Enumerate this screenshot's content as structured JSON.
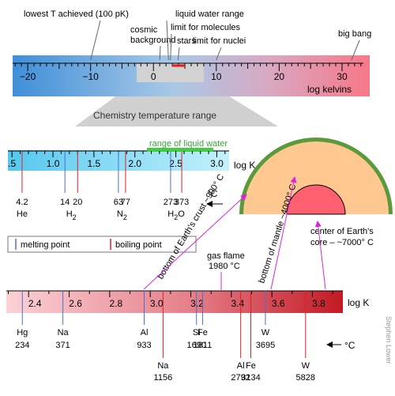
{
  "colors": {
    "melting": "#4a6fd4",
    "boiling": "#e02020",
    "liquid_water": "#44cc44",
    "magenta": "#e020e0",
    "earth_crust": "#5a9a3a",
    "mantle": "#ffc890",
    "core": "#ff6070",
    "trapezoid": "#d0d0d0"
  },
  "top_scale": {
    "ticks": [
      "−20",
      "−10",
      "0",
      "10",
      "20",
      "30"
    ],
    "tick_values": [
      -20,
      -10,
      0,
      10,
      20,
      30
    ],
    "min": -22.4,
    "max": 33.4,
    "unit": "log kelvins",
    "callouts": [
      {
        "label": "lowest T achieved (100 pK)",
        "value": -10
      },
      {
        "label": "cosmic\nbackground",
        "value": 1
      },
      {
        "label": "liquid water range",
        "value": 2.4
      },
      {
        "label": "limit for molecules",
        "value": 2.7
      },
      {
        "label": "stars",
        "value": 3.9
      },
      {
        "label": "limit for nuclei",
        "value": 10
      },
      {
        "label": "big bang",
        "value": 31.5
      }
    ]
  },
  "zoom_label": "Chemistry temperature range",
  "low_scale": {
    "ticks": [
      ".5",
      "1.0",
      "1.5",
      "2.0",
      "2.5",
      "3.0"
    ],
    "tick_values": [
      0.5,
      1.0,
      1.5,
      2.0,
      2.5,
      3.0
    ],
    "min": 0.45,
    "max": 3.15,
    "unit": "log K",
    "liquid_water_label": "range of liquid water",
    "liquid_water": [
      2.436,
      2.572
    ],
    "celsius_arrow": "°C",
    "substances": [
      {
        "name": "He",
        "sub": "",
        "melt_c": "",
        "boil_c": "4.2",
        "melt": null,
        "boil": 0.623
      },
      {
        "name": "H",
        "sub": "2",
        "melt_c": "14",
        "boil_c": "20",
        "melt": 1.146,
        "boil": 1.301
      },
      {
        "name": "N",
        "sub": "2",
        "melt_c": "63",
        "boil_c": "77",
        "melt": 1.799,
        "boil": 1.886
      },
      {
        "name": "H",
        "sub": "2",
        "name2": "O",
        "melt_c": "273",
        "boil_c": "373",
        "melt": 2.436,
        "boil": 2.572
      }
    ]
  },
  "legend": {
    "melting": "melting point",
    "boiling": "boiling point"
  },
  "earth": {
    "crust_label": "bottom of Earth's crust ~900° C",
    "mantle_label": "bottom of mantle ~4000° C",
    "core_label_1": "center of Earth's",
    "core_label_2": "core – ~7000° C"
  },
  "gas_flame": {
    "line1": "gas flame",
    "line2": "1980 °C"
  },
  "high_scale": {
    "ticks": [
      "2.4",
      "2.6",
      "2.8",
      "3.0",
      "3.2",
      "3.4",
      "3.6",
      "3.8"
    ],
    "tick_values": [
      2.4,
      2.6,
      2.8,
      3.0,
      3.2,
      3.4,
      3.6,
      3.8
    ],
    "min": 2.29,
    "max": 3.95,
    "unit": "log K",
    "celsius_arrow": "°C",
    "upper_marks": [
      {
        "name": "Hg",
        "value": "234",
        "type": "melting",
        "logk": 2.369
      },
      {
        "name": "Na",
        "value": "371",
        "type": "melting",
        "logk": 2.569
      },
      {
        "name": "Al",
        "value": "933",
        "type": "melting",
        "logk": 2.97
      },
      {
        "name": "Si",
        "value": "1690",
        "type": "melting",
        "logk": 3.228
      },
      {
        "name": "Fe",
        "value": "1811",
        "type": "melting",
        "logk": 3.258
      },
      {
        "name": "W",
        "value": "3695",
        "type": "melting",
        "logk": 3.568
      }
    ],
    "lower_marks": [
      {
        "name": "Na",
        "value": "1156",
        "type": "boiling",
        "logk": 3.063
      },
      {
        "name": "Al",
        "value": "2792",
        "type": "boiling",
        "logk": 3.446
      },
      {
        "name": "Fe",
        "value": "3134",
        "type": "boiling",
        "logk": 3.496
      },
      {
        "name": "W",
        "value": "5828",
        "type": "boiling",
        "logk": 3.766
      }
    ]
  },
  "credit": "Stephen Lower"
}
